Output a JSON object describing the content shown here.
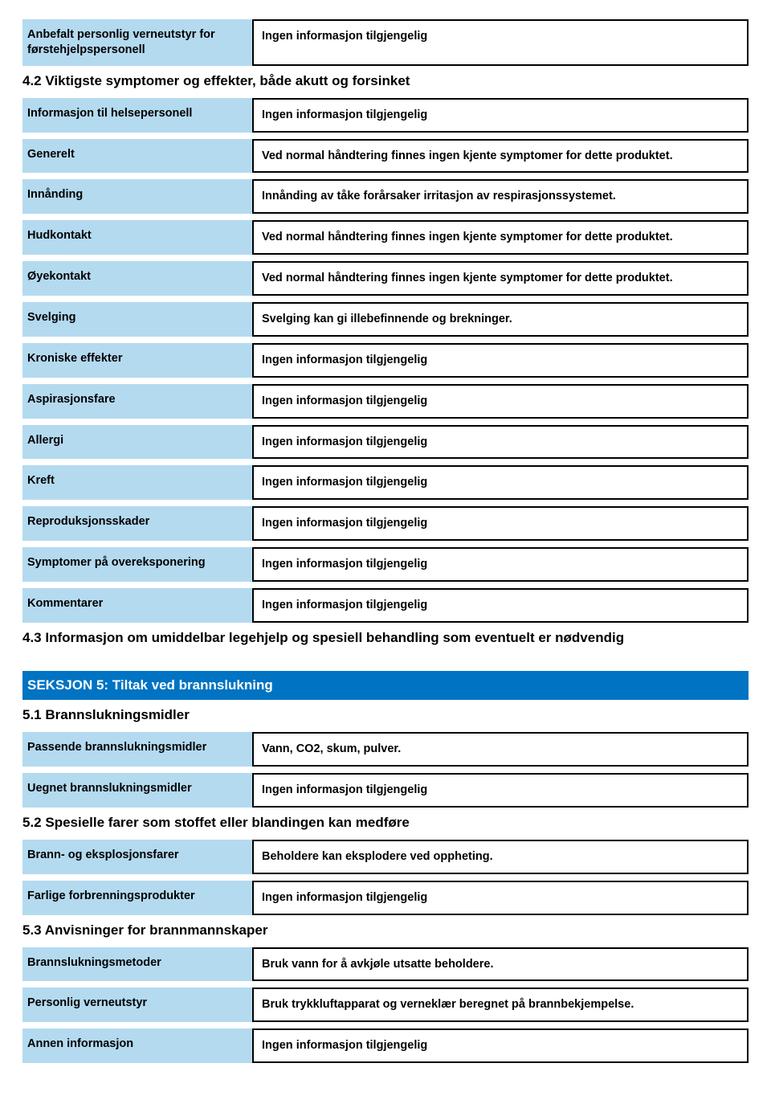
{
  "colors": {
    "label_bg": "#b4daf0",
    "value_border": "#000000",
    "section_bar_bg": "#0073c3",
    "section_bar_fg": "#ffffff",
    "page_bg": "#ffffff",
    "text": "#000000"
  },
  "section4": {
    "rows_top": [
      {
        "label": "Anbefalt personlig verneutstyr for førstehjelpspersonell",
        "value": "Ingen informasjon tilgjengelig"
      }
    ],
    "heading_4_2": "4.2 Viktigste symptomer og effekter, både akutt og forsinket",
    "rows_4_2": [
      {
        "label": "Informasjon til helsepersonell",
        "value": "Ingen informasjon tilgjengelig"
      },
      {
        "label": "Generelt",
        "value": "Ved normal håndtering finnes ingen kjente symptomer for dette produktet."
      },
      {
        "label": "Innånding",
        "value": "Innånding av tåke forårsaker irritasjon av respirasjonssystemet."
      },
      {
        "label": "Hudkontakt",
        "value": "Ved normal håndtering finnes ingen kjente symptomer for dette produktet."
      },
      {
        "label": "Øyekontakt",
        "value": "Ved normal håndtering finnes ingen kjente symptomer for dette produktet."
      },
      {
        "label": "Svelging",
        "value": "Svelging kan gi illebefinnende og brekninger."
      },
      {
        "label": "Kroniske effekter",
        "value": "Ingen informasjon tilgjengelig"
      },
      {
        "label": "Aspirasjonsfare",
        "value": "Ingen informasjon tilgjengelig"
      },
      {
        "label": "Allergi",
        "value": "Ingen informasjon tilgjengelig"
      },
      {
        "label": "Kreft",
        "value": "Ingen informasjon tilgjengelig"
      },
      {
        "label": "Reproduksjonsskader",
        "value": "Ingen informasjon tilgjengelig"
      },
      {
        "label": "Symptomer på overeksponering",
        "value": "Ingen informasjon tilgjengelig"
      },
      {
        "label": "Kommentarer",
        "value": "Ingen informasjon tilgjengelig"
      }
    ],
    "heading_4_3": "4.3 Informasjon om umiddelbar legehjelp og spesiell behandling som eventuelt er nødvendig"
  },
  "section5": {
    "title": "SEKSJON 5: Tiltak ved brannslukning",
    "heading_5_1": "5.1 Brannslukningsmidler",
    "rows_5_1": [
      {
        "label": "Passende brannslukningsmidler",
        "value": "Vann, CO2, skum, pulver."
      },
      {
        "label": "Uegnet brannslukningsmidler",
        "value": "Ingen informasjon tilgjengelig"
      }
    ],
    "heading_5_2": "5.2 Spesielle farer som stoffet eller blandingen kan medføre",
    "rows_5_2": [
      {
        "label": "Brann- og eksplosjonsfarer",
        "value": "Beholdere kan eksplodere ved oppheting."
      },
      {
        "label": "Farlige forbrenningsprodukter",
        "value": "Ingen informasjon tilgjengelig"
      }
    ],
    "heading_5_3": "5.3 Anvisninger for brannmannskaper",
    "rows_5_3": [
      {
        "label": "Brannslukningsmetoder",
        "value": "Bruk vann for å avkjøle utsatte beholdere."
      },
      {
        "label": "Personlig verneutstyr",
        "value": "Bruk trykkluftapparat og verneklær beregnet på brannbekjempelse."
      },
      {
        "label": "Annen informasjon",
        "value": "Ingen informasjon tilgjengelig"
      }
    ]
  }
}
